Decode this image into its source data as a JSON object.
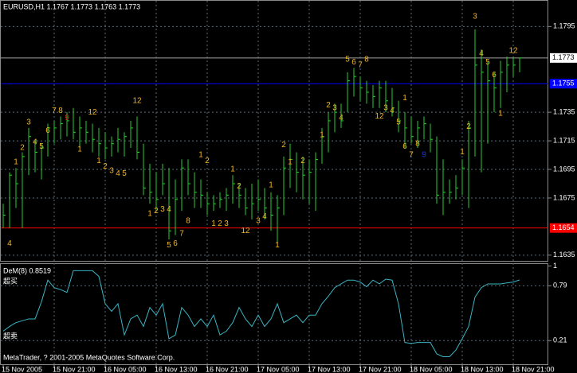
{
  "chart_data": [
    {
      "type": "ohlc",
      "title": "EURUSD,H1  1.1767 1.1773 1.1763 1.1773",
      "categories": [
        "15 Nov 2005",
        null,
        null,
        null,
        null,
        null,
        null,
        null,
        "15 Nov 21:00",
        null,
        null,
        null,
        null,
        null,
        null,
        null,
        "16 Nov 05:00",
        null,
        null,
        null,
        null,
        null,
        null,
        null,
        "16 Nov 13:00",
        null,
        null,
        null,
        null,
        null,
        null,
        null,
        "16 Nov 21:00",
        null,
        null,
        null,
        null,
        null,
        null,
        null,
        "17 Nov 05:00",
        null,
        null,
        null,
        null,
        null,
        null,
        null,
        "17 Nov 13:00",
        null,
        null,
        null,
        null,
        null,
        null,
        null,
        "17 Nov 21:00",
        null,
        null,
        null,
        null,
        null,
        null,
        null,
        "18 Nov 05:00",
        null,
        null,
        null,
        null,
        null,
        null,
        null,
        "18 Nov 13:00",
        null,
        null,
        null,
        null,
        null,
        null,
        null,
        "18 Nov 21:00",
        null
      ],
      "high": [
        1.1671,
        1.1693,
        1.1696,
        1.1707,
        1.1724,
        1.1716,
        1.1713,
        1.1727,
        1.1729,
        1.1732,
        1.1735,
        1.1738,
        1.1732,
        1.1729,
        1.1727,
        1.1724,
        1.1721,
        1.1718,
        1.1724,
        1.1721,
        1.1729,
        1.1732,
        1.1713,
        1.1699,
        1.1693,
        1.1699,
        1.1696,
        1.1688,
        1.1702,
        1.1702,
        1.1693,
        1.1688,
        1.1679,
        1.1677,
        1.1679,
        1.1682,
        1.1691,
        1.1685,
        1.1682,
        1.1685,
        1.1688,
        1.1682,
        1.1679,
        1.1677,
        1.1704,
        1.1713,
        1.1707,
        1.1704,
        1.1702,
        1.1707,
        1.1724,
        1.1735,
        1.1741,
        1.1741,
        1.1763,
        1.1766,
        1.176,
        1.1757,
        1.1754,
        1.1757,
        1.1757,
        1.1752,
        1.1743,
        1.1735,
        1.1732,
        1.1729,
        1.1732,
        1.1727,
        1.1718,
        1.1702,
        1.1688,
        1.1691,
        1.1702,
        1.1729,
        1.1793,
        1.1779,
        1.1771,
        1.1763,
        1.1771,
        1.1774,
        1.1774,
        1.1773
      ],
      "low": [
        1.1654,
        1.1654,
        1.1668,
        1.1654,
        1.1691,
        1.1693,
        1.1688,
        1.1704,
        1.1713,
        1.1716,
        1.1718,
        1.1716,
        1.171,
        1.1713,
        1.1707,
        1.1704,
        1.1702,
        1.1704,
        1.1707,
        1.1704,
        1.171,
        1.1702,
        1.1677,
        1.1671,
        1.1666,
        1.1677,
        1.1646,
        1.1649,
        1.1666,
        1.1677,
        1.1668,
        1.1668,
        1.1663,
        1.1666,
        1.1668,
        1.1666,
        1.1671,
        1.1668,
        1.1663,
        1.166,
        1.1666,
        1.166,
        1.1652,
        1.1643,
        1.1663,
        1.1682,
        1.1679,
        1.1674,
        1.1671,
        1.1666,
        1.1699,
        1.1707,
        1.1721,
        1.1724,
        1.1735,
        1.1746,
        1.1743,
        1.1741,
        1.1738,
        1.1738,
        1.1735,
        1.1732,
        1.1721,
        1.171,
        1.1713,
        1.171,
        1.1716,
        1.1707,
        1.1671,
        1.1663,
        1.1671,
        1.1674,
        1.1677,
        1.1668,
        1.1704,
        1.1693,
        1.1713,
        1.1735,
        1.1738,
        1.1749,
        1.176,
        1.1763
      ],
      "close": [
        1.1663,
        1.1691,
        1.1685,
        1.1704,
        1.1718,
        1.1707,
        1.171,
        1.1724,
        1.1724,
        1.1727,
        1.1729,
        1.1721,
        1.1724,
        1.1721,
        1.1716,
        1.1713,
        1.171,
        1.1713,
        1.1716,
        1.1718,
        1.1724,
        1.1707,
        1.1682,
        1.1679,
        1.1674,
        1.1685,
        1.1652,
        1.1674,
        1.1696,
        1.1685,
        1.1679,
        1.1677,
        1.1671,
        1.1671,
        1.1674,
        1.1677,
        1.1685,
        1.1677,
        1.1668,
        1.1671,
        1.1674,
        1.1668,
        1.1663,
        1.1668,
        1.1696,
        1.1702,
        1.1693,
        1.1691,
        1.1693,
        1.1702,
        1.1718,
        1.1729,
        1.1735,
        1.1729,
        1.1757,
        1.176,
        1.1752,
        1.1749,
        1.1746,
        1.1752,
        1.1743,
        1.1738,
        1.1729,
        1.1724,
        1.1718,
        1.1724,
        1.1727,
        1.1716,
        1.1677,
        1.1679,
        1.1679,
        1.1682,
        1.1696,
        1.1724,
        1.1768,
        1.1763,
        1.1757,
        1.1752,
        1.1763,
        1.1768,
        1.1768,
        1.1773
      ],
      "color": "#2ecc2e",
      "ylim": [
        1.1631,
        1.1813
      ],
      "yticks": [
        1.1635,
        1.1675,
        1.1695,
        1.1715,
        1.1735,
        1.1795
      ],
      "grid": true,
      "hlines": [
        {
          "value": 1.1773,
          "color": "#a0a0a0",
          "label_color": "#000000",
          "box_color": "#ffffff"
        },
        {
          "value": 1.1755,
          "color": "#0000ff",
          "label_color": "#ffffff",
          "box_color": "#0000ff"
        },
        {
          "value": 1.1654,
          "color": "#ff0000",
          "label_color": "#ffffff",
          "box_color": "#ff0000"
        }
      ],
      "annotation_color": "#f0b428",
      "annotations": [
        {
          "text": "4",
          "bar": 1,
          "price": 1.1643
        },
        {
          "text": "1",
          "bar": 2,
          "price": 1.17
        },
        {
          "text": "2",
          "bar": 3,
          "price": 1.171
        },
        {
          "text": "3",
          "bar": 4,
          "price": 1.1728
        },
        {
          "text": "4",
          "bar": 5,
          "price": 1.1714
        },
        {
          "text": "5",
          "bar": 6,
          "price": 1.1711
        },
        {
          "text": "6",
          "bar": 7,
          "price": 1.1722
        },
        {
          "text": "7",
          "bar": 8,
          "price": 1.1736
        },
        {
          "text": "8",
          "bar": 9,
          "price": 1.1736
        },
        {
          "text": "9",
          "bar": 10,
          "price": 1.1731,
          "color": "#c03020"
        },
        {
          "text": "1",
          "bar": 12,
          "price": 1.1709
        },
        {
          "text": "12",
          "bar": 14,
          "price": 1.1735
        },
        {
          "text": "1",
          "bar": 15,
          "price": 1.1701
        },
        {
          "text": "2",
          "bar": 16,
          "price": 1.1697
        },
        {
          "text": "3",
          "bar": 17,
          "price": 1.1694
        },
        {
          "text": "4",
          "bar": 18,
          "price": 1.1692
        },
        {
          "text": "5",
          "bar": 19,
          "price": 1.1692
        },
        {
          "text": "12",
          "bar": 21,
          "price": 1.1743
        },
        {
          "text": "1",
          "bar": 23,
          "price": 1.1664
        },
        {
          "text": "2",
          "bar": 24,
          "price": 1.1666
        },
        {
          "text": "3",
          "bar": 25,
          "price": 1.1667
        },
        {
          "text": "4",
          "bar": 26,
          "price": 1.1667
        },
        {
          "text": "5",
          "bar": 26,
          "price": 1.1642
        },
        {
          "text": "6",
          "bar": 27,
          "price": 1.1643
        },
        {
          "text": "7",
          "bar": 28,
          "price": 1.165
        },
        {
          "text": "8",
          "bar": 29,
          "price": 1.1659
        },
        {
          "text": "1",
          "bar": 31,
          "price": 1.1705
        },
        {
          "text": "2",
          "bar": 32,
          "price": 1.1701
        },
        {
          "text": "1",
          "bar": 33,
          "price": 1.1657
        },
        {
          "text": "2",
          "bar": 34,
          "price": 1.1657
        },
        {
          "text": "3",
          "bar": 35,
          "price": 1.1657
        },
        {
          "text": "1",
          "bar": 36,
          "price": 1.1695
        },
        {
          "text": "2",
          "bar": 37,
          "price": 1.1683
        },
        {
          "text": "12",
          "bar": 38,
          "price": 1.1652
        },
        {
          "text": "3",
          "bar": 40,
          "price": 1.1659
        },
        {
          "text": "4",
          "bar": 41,
          "price": 1.1662
        },
        {
          "text": "1",
          "bar": 42,
          "price": 1.1684
        },
        {
          "text": "1",
          "bar": 43,
          "price": 1.1642
        },
        {
          "text": "2",
          "bar": 44,
          "price": 1.1712
        },
        {
          "text": "1",
          "bar": 45,
          "price": 1.17
        },
        {
          "text": "2",
          "bar": 47,
          "price": 1.1701
        },
        {
          "text": "1",
          "bar": 50,
          "price": 1.1719
        },
        {
          "text": "2",
          "bar": 51,
          "price": 1.174
        },
        {
          "text": "3",
          "bar": 52,
          "price": 1.1738
        },
        {
          "text": "4",
          "bar": 53,
          "price": 1.1731
        },
        {
          "text": "5",
          "bar": 54,
          "price": 1.1772
        },
        {
          "text": "6",
          "bar": 55,
          "price": 1.177
        },
        {
          "text": "7",
          "bar": 56,
          "price": 1.1768
        },
        {
          "text": "8",
          "bar": 57,
          "price": 1.1772
        },
        {
          "text": "12",
          "bar": 59,
          "price": 1.1732
        },
        {
          "text": "3",
          "bar": 60,
          "price": 1.1738
        },
        {
          "text": "4",
          "bar": 61,
          "price": 1.1736
        },
        {
          "text": "5",
          "bar": 62,
          "price": 1.1728
        },
        {
          "text": "1",
          "bar": 63,
          "price": 1.1745
        },
        {
          "text": "6",
          "bar": 63,
          "price": 1.1711
        },
        {
          "text": "7",
          "bar": 64,
          "price": 1.1705
        },
        {
          "text": "8",
          "bar": 65,
          "price": 1.1713
        },
        {
          "text": "9",
          "bar": 66,
          "price": 1.1705,
          "color": "#1838d0"
        },
        {
          "text": "1",
          "bar": 72,
          "price": 1.1707
        },
        {
          "text": "2",
          "bar": 73,
          "price": 1.1725
        },
        {
          "text": "3",
          "bar": 74,
          "price": 1.1802
        },
        {
          "text": "4",
          "bar": 75,
          "price": 1.1776
        },
        {
          "text": "5",
          "bar": 76,
          "price": 1.177
        },
        {
          "text": "6",
          "bar": 77,
          "price": 1.1761
        },
        {
          "text": "1",
          "bar": 78,
          "price": 1.1734
        },
        {
          "text": "12",
          "bar": 80,
          "price": 1.1778
        }
      ]
    },
    {
      "type": "line",
      "title": "DeM(8) 0.8519",
      "values": [
        0.31,
        0.36,
        0.4,
        0.42,
        0.44,
        0.44,
        0.62,
        0.85,
        0.77,
        0.75,
        0.72,
        0.95,
        0.95,
        0.95,
        0.95,
        0.89,
        0.6,
        0.52,
        0.6,
        0.27,
        0.44,
        0.48,
        0.36,
        0.56,
        0.48,
        0.6,
        0.23,
        0.27,
        0.56,
        0.48,
        0.36,
        0.44,
        0.36,
        0.48,
        0.27,
        0.31,
        0.4,
        0.56,
        0.44,
        0.36,
        0.48,
        0.36,
        0.44,
        0.6,
        0.4,
        0.44,
        0.48,
        0.4,
        0.48,
        0.48,
        0.6,
        0.68,
        0.77,
        0.81,
        0.85,
        0.85,
        0.83,
        0.78,
        0.85,
        0.81,
        0.86,
        0.85,
        0.6,
        0.19,
        0.18,
        0.19,
        0.19,
        0.19,
        0.07,
        0.04,
        0.04,
        0.11,
        0.23,
        0.36,
        0.67,
        0.77,
        0.81,
        0.81,
        0.81,
        0.82,
        0.83,
        0.8519
      ],
      "color": "#3ab4c4",
      "ylim": [
        -0.04,
        1.02
      ],
      "yticks": [
        0.21,
        0.79,
        1
      ],
      "levels": [
        {
          "value": 0.79,
          "text": "超买"
        },
        {
          "value": 0.21,
          "text": "超卖"
        }
      ],
      "caption": "MetaTrader, ? 2001-2005 MetaQuotes Software Corp."
    }
  ]
}
